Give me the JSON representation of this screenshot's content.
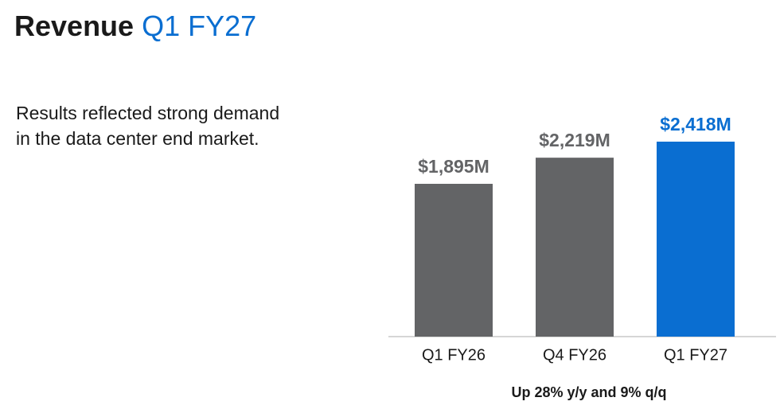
{
  "header": {
    "title": "Revenue",
    "period": "Q1 FY27"
  },
  "body": [
    "Results reflected strong demand",
    "in the data center end market."
  ],
  "chart_data": {
    "type": "bar",
    "categories": [
      "Q1 FY26",
      "Q4 FY26",
      "Q1 FY27"
    ],
    "values": [
      1895,
      2219,
      2418
    ],
    "value_labels": [
      "$1,895M",
      "$2,219M",
      "$2,418M"
    ],
    "colors": [
      "#636466",
      "#636466",
      "#0a6ed1"
    ],
    "annotation": "Up 28% y/y and 9% q/q"
  }
}
